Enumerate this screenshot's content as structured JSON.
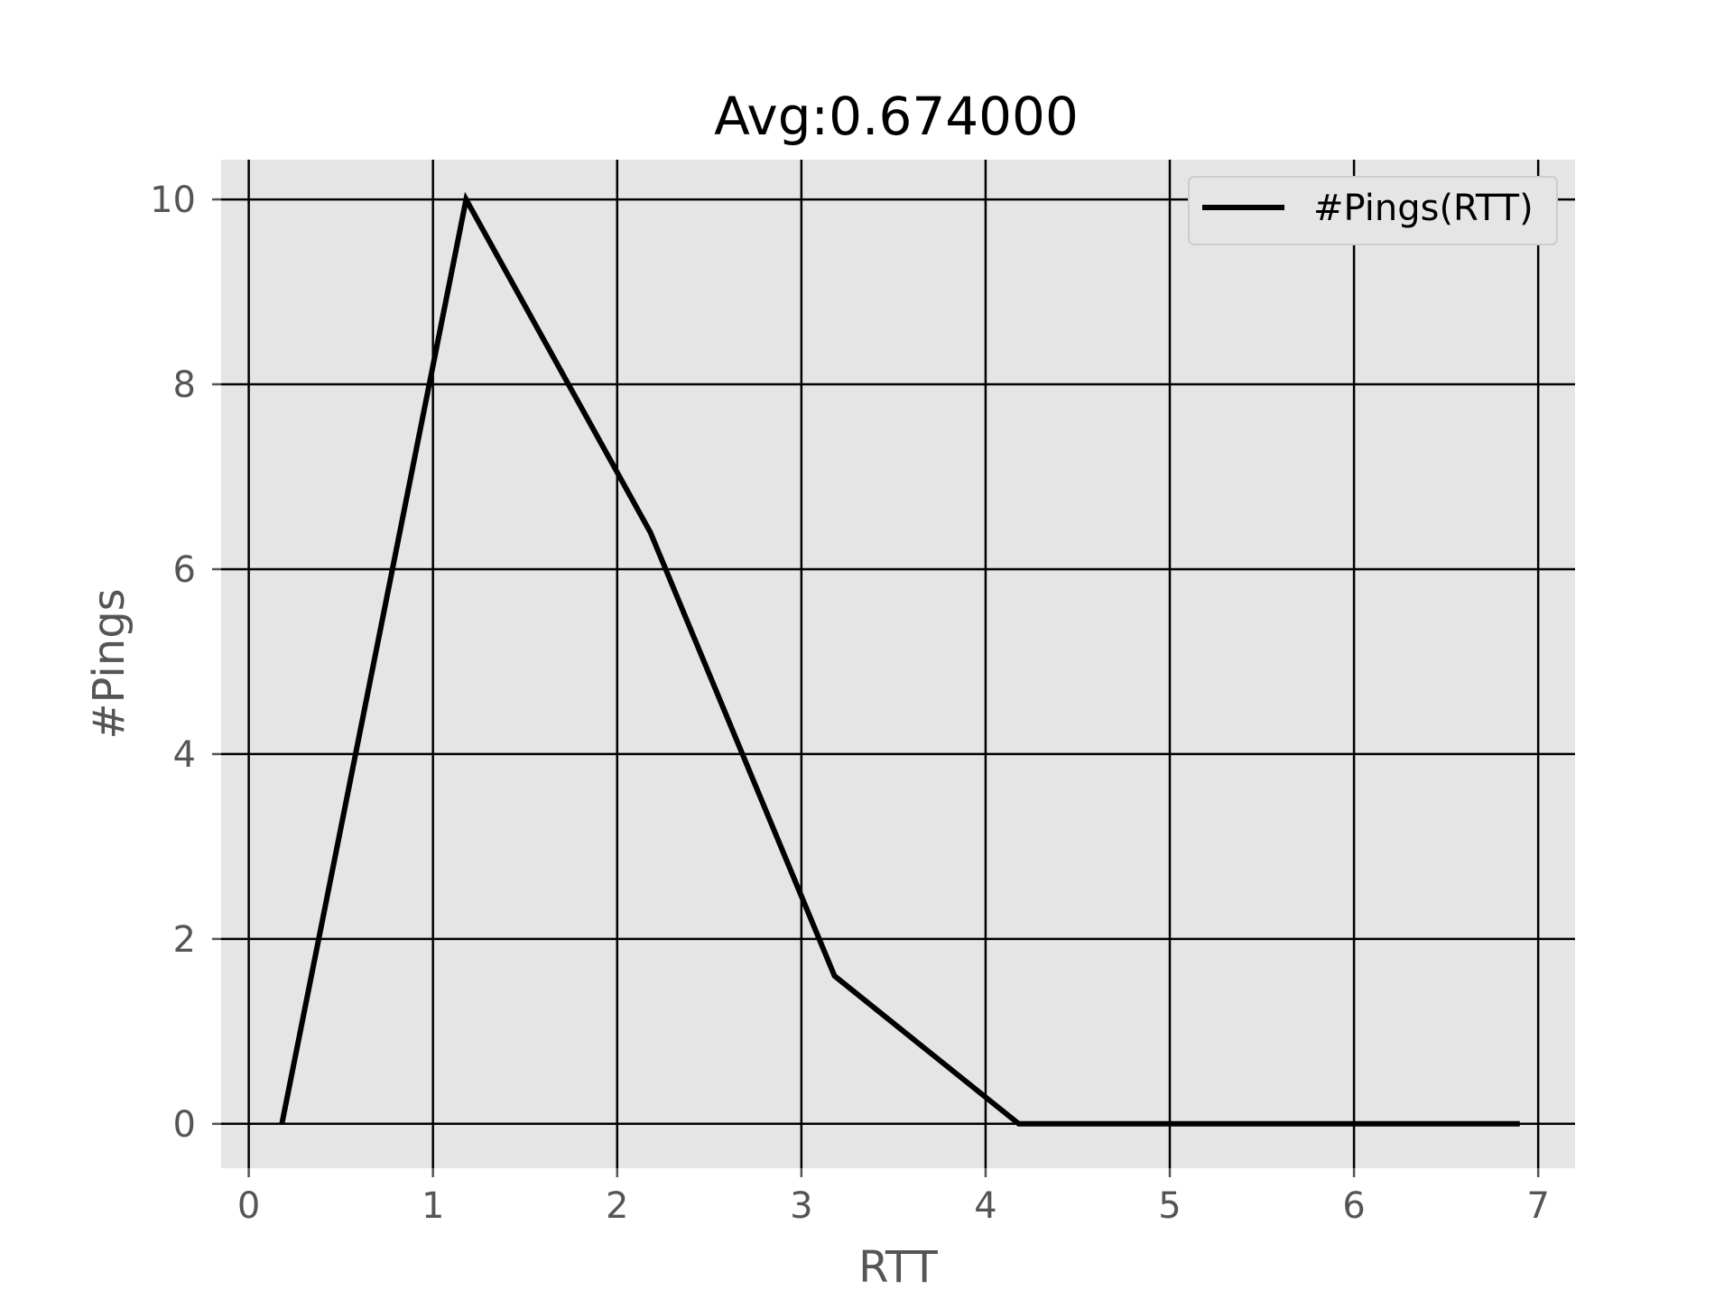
{
  "chart_data": {
    "type": "line",
    "title": "Avg:0.674000",
    "xlabel": "RTT",
    "ylabel": "#Pings",
    "xlim": [
      -0.15,
      7.2
    ],
    "ylim": [
      -0.48,
      10.43
    ],
    "xticks": [
      0,
      1,
      2,
      3,
      4,
      5,
      6,
      7
    ],
    "yticks": [
      0,
      2,
      4,
      6,
      8,
      10
    ],
    "grid": true,
    "legend_position": "top-right",
    "colors": {
      "plot_background": "#e5e5e5",
      "line": "#000000",
      "grid": "#000000"
    },
    "series": [
      {
        "name": "#Pings(RTT)",
        "x": [
          0.18,
          1.18,
          2.18,
          3.18,
          4.18,
          5.18,
          6.18,
          6.9
        ],
        "y": [
          0,
          10,
          6.4,
          1.6,
          0,
          0,
          0,
          0
        ]
      }
    ]
  }
}
